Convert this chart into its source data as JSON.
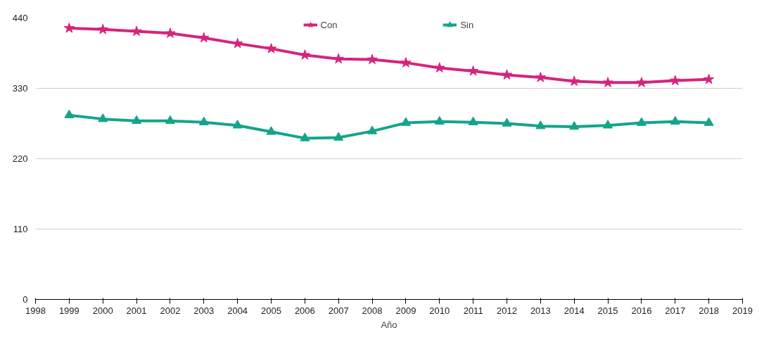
{
  "chart_data": {
    "type": "line",
    "xlabel": "Año",
    "x": [
      1999,
      2000,
      2001,
      2002,
      2003,
      2004,
      2005,
      2006,
      2007,
      2008,
      2009,
      2010,
      2011,
      2012,
      2013,
      2014,
      2015,
      2016,
      2017,
      2018
    ],
    "series": [
      {
        "name": "Con",
        "color": "#d6237d",
        "marker": "star",
        "values": [
          424,
          422,
          419,
          416,
          409,
          400,
          392,
          382,
          376,
          375,
          370,
          362,
          357,
          351,
          347,
          341,
          339,
          339,
          342,
          344
        ]
      },
      {
        "name": "Sin",
        "color": "#13a589",
        "marker": "triangle",
        "values": [
          288,
          282,
          279,
          279,
          277,
          272,
          262,
          252,
          253,
          263,
          276,
          278,
          277,
          275,
          271,
          270,
          272,
          276,
          278,
          276
        ]
      }
    ],
    "xlim": [
      1998,
      2019
    ],
    "xticks": [
      1998,
      1999,
      2000,
      2001,
      2002,
      2003,
      2004,
      2005,
      2006,
      2007,
      2008,
      2009,
      2010,
      2011,
      2012,
      2013,
      2014,
      2015,
      2016,
      2017,
      2018,
      2019
    ],
    "ylim": [
      0,
      440
    ],
    "yticks": [
      0,
      110,
      220,
      330,
      440
    ],
    "grid": "y",
    "legend": "top",
    "line_style": "solid"
  }
}
